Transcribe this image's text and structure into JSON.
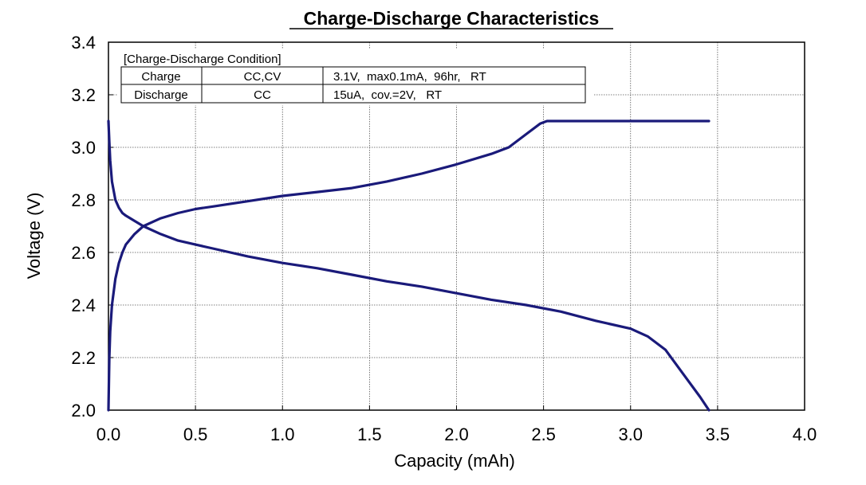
{
  "chart_data": {
    "type": "line",
    "title": "Charge-Discharge Characteristics",
    "xlabel": "Capacity (mAh)",
    "ylabel": "Voltage (V)",
    "xlim": [
      0.0,
      4.0
    ],
    "ylim": [
      2.0,
      3.4
    ],
    "x_ticks": [
      "0.0",
      "0.5",
      "1.0",
      "1.5",
      "2.0",
      "2.5",
      "3.0",
      "3.5",
      "4.0"
    ],
    "y_ticks": [
      "2.0",
      "2.2",
      "2.4",
      "2.6",
      "2.8",
      "3.0",
      "3.2",
      "3.4"
    ],
    "grid": true,
    "line_color": "#1a1a7a",
    "series": [
      {
        "role": "charge",
        "x": [
          0.0,
          0.005,
          0.01,
          0.02,
          0.04,
          0.06,
          0.08,
          0.1,
          0.15,
          0.2,
          0.3,
          0.4,
          0.5,
          0.6,
          0.8,
          1.0,
          1.2,
          1.4,
          1.6,
          1.8,
          2.0,
          2.2,
          2.3,
          2.4,
          2.48,
          2.52,
          2.6,
          2.8,
          3.0,
          3.2,
          3.45
        ],
        "y": [
          2.0,
          2.2,
          2.3,
          2.4,
          2.5,
          2.56,
          2.6,
          2.63,
          2.67,
          2.7,
          2.73,
          2.75,
          2.765,
          2.775,
          2.795,
          2.815,
          2.83,
          2.845,
          2.87,
          2.9,
          2.935,
          2.975,
          3.0,
          3.05,
          3.09,
          3.1,
          3.1,
          3.1,
          3.1,
          3.1,
          3.1
        ]
      },
      {
        "role": "discharge",
        "x": [
          0.0,
          0.005,
          0.01,
          0.02,
          0.04,
          0.06,
          0.08,
          0.1,
          0.15,
          0.2,
          0.3,
          0.4,
          0.5,
          0.6,
          0.8,
          1.0,
          1.2,
          1.4,
          1.6,
          1.8,
          2.0,
          2.2,
          2.4,
          2.6,
          2.8,
          3.0,
          3.1,
          3.2,
          3.3,
          3.4,
          3.45
        ],
        "y": [
          3.1,
          3.02,
          2.95,
          2.87,
          2.8,
          2.77,
          2.75,
          2.74,
          2.72,
          2.7,
          2.67,
          2.645,
          2.63,
          2.615,
          2.585,
          2.56,
          2.54,
          2.515,
          2.49,
          2.47,
          2.445,
          2.42,
          2.4,
          2.375,
          2.34,
          2.31,
          2.28,
          2.23,
          2.14,
          2.05,
          2.0
        ]
      }
    ]
  },
  "condition_table": {
    "heading": "[Charge-Discharge Condition]",
    "rows": [
      {
        "label": "Charge",
        "mode": "CC,CV",
        "detail": "3.1V,  max0.1mA,  96hr,   RT"
      },
      {
        "label": "Discharge",
        "mode": "CC",
        "detail": "15uA,  cov.=2V,   RT"
      }
    ]
  }
}
